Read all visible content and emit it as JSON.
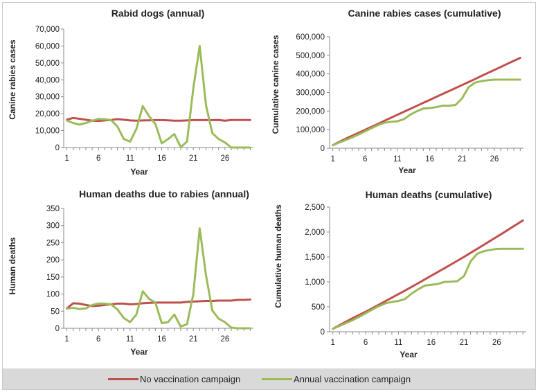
{
  "legend": {
    "series_a": "No vaccination campaign",
    "series_b": "Annual vaccination campaign"
  },
  "colors": {
    "no_vaccination": "#c0504d",
    "vaccination": "#9bbb59",
    "axis": "#888888",
    "text": "#222222"
  },
  "chart_data": [
    {
      "id": "rabid-dogs-annual",
      "type": "line",
      "title": "Rabid dogs (annual)",
      "xlabel": "Year",
      "ylabel": "Canine rabies cases",
      "ylim": [
        0,
        70000
      ],
      "yticks": [
        0,
        10000,
        20000,
        30000,
        40000,
        50000,
        60000,
        70000
      ],
      "yticklabels": [
        "0",
        "10,000",
        "20,000",
        "30,000",
        "40,000",
        "50,000",
        "60,000",
        "70,000"
      ],
      "xticks": [
        1,
        6,
        11,
        16,
        21,
        26
      ],
      "x": [
        1,
        2,
        3,
        4,
        5,
        6,
        7,
        8,
        9,
        10,
        11,
        12,
        13,
        14,
        15,
        16,
        17,
        18,
        19,
        20,
        21,
        22,
        23,
        24,
        25,
        26,
        27,
        28,
        29,
        30
      ],
      "series": [
        {
          "name": "No vaccination campaign",
          "values": [
            16500,
            17500,
            17000,
            16400,
            15900,
            15700,
            16000,
            16300,
            16800,
            16400,
            16000,
            15900,
            16000,
            16100,
            16200,
            16200,
            16100,
            15900,
            15900,
            16000,
            16200,
            16200,
            16200,
            16200,
            16300,
            15900,
            16300,
            16300,
            16300,
            16300
          ]
        },
        {
          "name": "Annual vaccination campaign",
          "values": [
            16000,
            14500,
            13500,
            14500,
            15800,
            16900,
            16700,
            16200,
            12500,
            5000,
            3500,
            11000,
            24500,
            18500,
            14000,
            2500,
            5000,
            8000,
            200,
            3500,
            35000,
            60000,
            25000,
            8500,
            5000,
            3000,
            0,
            0,
            0,
            0
          ]
        }
      ]
    },
    {
      "id": "canine-cumulative",
      "type": "line",
      "title": "Canine rabies cases (cumulative)",
      "xlabel": "Year",
      "ylabel": "Cumulative canine cases",
      "ylim": [
        0,
        600000
      ],
      "yticks": [
        0,
        100000,
        200000,
        300000,
        400000,
        500000,
        600000
      ],
      "yticklabels": [
        "0",
        "100,000",
        "200,000",
        "300,000",
        "400,000",
        "500,000",
        "600,000"
      ],
      "xticks": [
        1,
        6,
        11,
        16,
        21,
        26
      ],
      "x": [
        1,
        2,
        3,
        4,
        5,
        6,
        7,
        8,
        9,
        10,
        11,
        12,
        13,
        14,
        15,
        16,
        17,
        18,
        19,
        20,
        21,
        22,
        23,
        24,
        25,
        26,
        27,
        28,
        29,
        30
      ],
      "series": [
        {
          "name": "No vaccination campaign",
          "values": [
            16500,
            34000,
            51000,
            67000,
            83000,
            99000,
            115000,
            131000,
            148000,
            164000,
            180000,
            196000,
            212000,
            228000,
            244000,
            260000,
            276000,
            292000,
            308000,
            324000,
            340000,
            356000,
            372000,
            389000,
            405000,
            421000,
            437000,
            454000,
            470000,
            486000
          ]
        },
        {
          "name": "Annual vaccination campaign",
          "values": [
            16000,
            30500,
            44000,
            58500,
            74000,
            91000,
            108000,
            124000,
            137000,
            142000,
            145000,
            156000,
            181000,
            199000,
            213000,
            216000,
            221000,
            229000,
            229000,
            233000,
            268000,
            328000,
            353000,
            361000,
            366000,
            369000,
            369000,
            369000,
            369000,
            369000
          ]
        }
      ]
    },
    {
      "id": "human-deaths-annual",
      "type": "line",
      "title": "Human deaths due to rabies (annual)",
      "xlabel": "Year",
      "ylabel": "Human deaths",
      "ylim": [
        0,
        350
      ],
      "yticks": [
        0,
        50,
        100,
        150,
        200,
        250,
        300,
        350
      ],
      "yticklabels": [
        "0",
        "50",
        "100",
        "150",
        "200",
        "250",
        "300",
        "350"
      ],
      "xticks": [
        1,
        6,
        11,
        16,
        21,
        26
      ],
      "x": [
        1,
        2,
        3,
        4,
        5,
        6,
        7,
        8,
        9,
        10,
        11,
        12,
        13,
        14,
        15,
        16,
        17,
        18,
        19,
        20,
        21,
        22,
        23,
        24,
        25,
        26,
        27,
        28,
        29,
        30
      ],
      "series": [
        {
          "name": "No vaccination campaign",
          "values": [
            58,
            73,
            72,
            68,
            65,
            66,
            68,
            70,
            72,
            72,
            70,
            71,
            73,
            74,
            75,
            75,
            75,
            75,
            75,
            77,
            78,
            79,
            80,
            80,
            81,
            81,
            81,
            83,
            83,
            84
          ]
        },
        {
          "name": "Annual vaccination campaign",
          "values": [
            57,
            60,
            56,
            58,
            68,
            72,
            72,
            70,
            55,
            30,
            18,
            40,
            108,
            86,
            75,
            15,
            18,
            40,
            5,
            12,
            100,
            292,
            155,
            52,
            28,
            18,
            2,
            0,
            0,
            0
          ]
        }
      ]
    },
    {
      "id": "human-deaths-cumulative",
      "type": "line",
      "title": "Human deaths (cumulative)",
      "xlabel": "Year",
      "ylabel": "Cumulative human deaths",
      "ylim": [
        0,
        2500
      ],
      "yticks": [
        0,
        500,
        1000,
        1500,
        2000,
        2500
      ],
      "yticklabels": [
        "0",
        "500",
        "1,000",
        "1,500",
        "2,000",
        "2,500"
      ],
      "xticks": [
        1,
        6,
        11,
        16,
        21,
        26
      ],
      "x": [
        1,
        2,
        3,
        4,
        5,
        6,
        7,
        8,
        9,
        10,
        11,
        12,
        13,
        14,
        15,
        16,
        17,
        18,
        19,
        20,
        21,
        22,
        23,
        24,
        25,
        26,
        27,
        28,
        29,
        30
      ],
      "series": [
        {
          "name": "No vaccination campaign",
          "values": [
            58,
            131,
            203,
            271,
            336,
            402,
            470,
            540,
            612,
            684,
            754,
            825,
            898,
            972,
            1047,
            1122,
            1197,
            1272,
            1347,
            1424,
            1502,
            1581,
            1661,
            1741,
            1822,
            1903,
            1984,
            2067,
            2150,
            2234
          ]
        },
        {
          "name": "Annual vaccination campaign",
          "values": [
            57,
            117,
            173,
            231,
            299,
            371,
            443,
            513,
            568,
            598,
            616,
            656,
            764,
            850,
            925,
            940,
            958,
            998,
            1003,
            1015,
            1115,
            1407,
            1562,
            1614,
            1642,
            1660,
            1662,
            1662,
            1662,
            1662
          ]
        }
      ]
    }
  ]
}
